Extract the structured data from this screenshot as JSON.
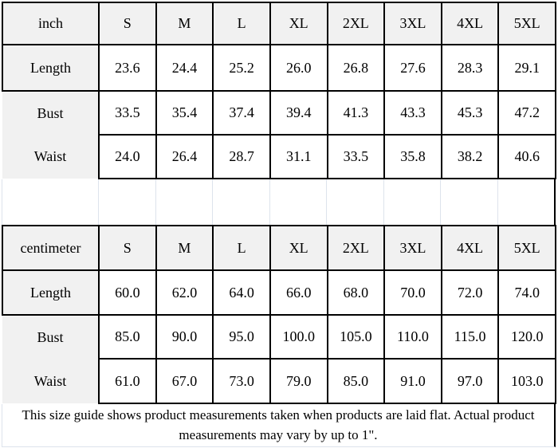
{
  "chart_data": [
    {
      "type": "table",
      "title": "inch size table",
      "unit": "inch",
      "columns": [
        "inch",
        "S",
        "M",
        "L",
        "XL",
        "2XL",
        "3XL",
        "4XL",
        "5XL"
      ],
      "rows": [
        [
          "Length",
          "23.6",
          "24.4",
          "25.2",
          "26.0",
          "26.8",
          "27.6",
          "28.3",
          "29.1"
        ],
        [
          "Bust",
          "33.5",
          "35.4",
          "37.4",
          "39.4",
          "41.3",
          "43.3",
          "45.3",
          "47.2"
        ],
        [
          "Waist",
          "24.0",
          "26.4",
          "28.7",
          "31.1",
          "33.5",
          "35.8",
          "38.2",
          "40.6"
        ]
      ]
    },
    {
      "type": "table",
      "title": "centimeter size table",
      "unit": "centimeter",
      "columns": [
        "centimeter",
        "S",
        "M",
        "L",
        "XL",
        "2XL",
        "3XL",
        "4XL",
        "5XL"
      ],
      "rows": [
        [
          "Length",
          "60.0",
          "62.0",
          "64.0",
          "66.0",
          "68.0",
          "70.0",
          "72.0",
          "74.0"
        ],
        [
          "Bust",
          "85.0",
          "90.0",
          "95.0",
          "100.0",
          "105.0",
          "110.0",
          "115.0",
          "120.0"
        ],
        [
          "Waist",
          "61.0",
          "67.0",
          "73.0",
          "79.0",
          "85.0",
          "91.0",
          "97.0",
          "103.0"
        ]
      ]
    }
  ],
  "note": {
    "line1": "This size guide shows product measurements taken when products are laid flat. Actual product",
    "line2": "measurements may vary by up to 1\"."
  },
  "colors": {
    "cell_border": "#000000",
    "header_fill": "#f1f1f1",
    "gridline": "#dde3ec"
  }
}
